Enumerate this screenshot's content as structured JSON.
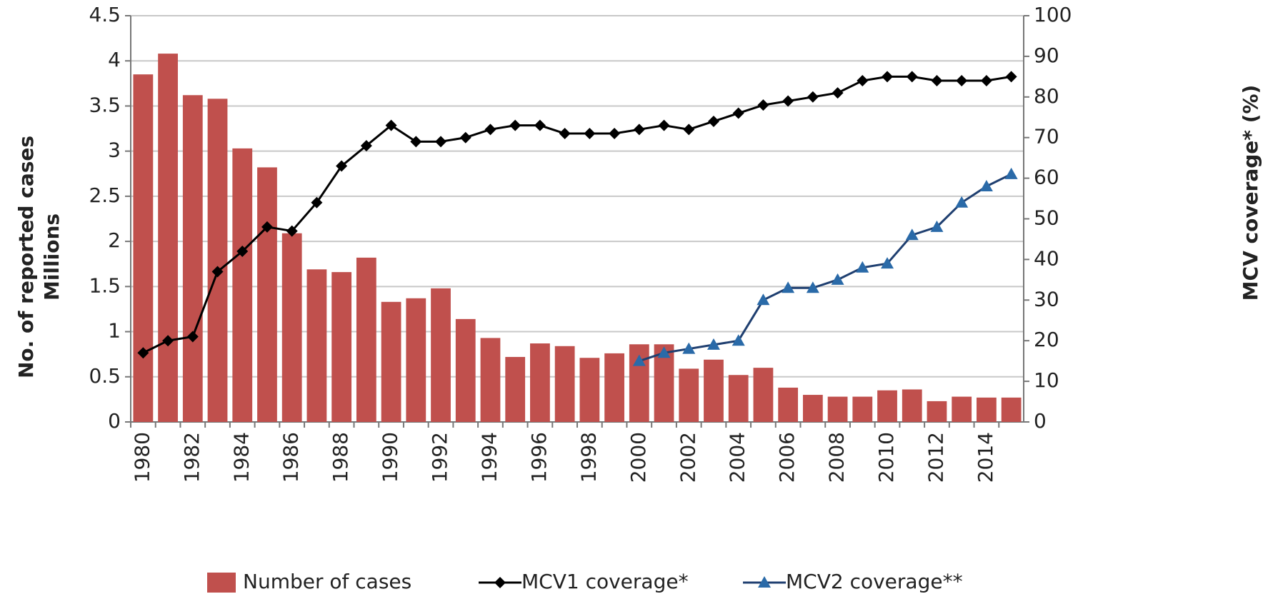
{
  "chart_data": {
    "type": "bar",
    "y_label": [
      "No. of reported cases",
      "Millions"
    ],
    "y2_label": "MCV coverage* (%)",
    "categories": [
      "1980",
      null,
      "1982",
      null,
      "1984",
      null,
      "1986",
      null,
      "1988",
      null,
      "1990",
      null,
      "1992",
      null,
      "1994",
      null,
      "1996",
      null,
      "1998",
      null,
      "2000",
      null,
      "2002",
      null,
      "2004",
      null,
      "2006",
      null,
      "2008",
      null,
      "2010",
      null,
      "2012",
      null,
      "2014",
      null
    ],
    "series": [
      {
        "name": "Number of cases",
        "type": "bar",
        "color": "#c0504d",
        "values": [
          3.85,
          4.08,
          3.62,
          3.58,
          3.03,
          2.82,
          2.09,
          1.69,
          1.66,
          1.82,
          1.33,
          1.37,
          1.48,
          1.14,
          0.93,
          0.72,
          0.87,
          0.84,
          0.71,
          0.76,
          0.86,
          0.86,
          0.59,
          0.69,
          0.52,
          0.6,
          0.38,
          0.3,
          0.28,
          0.28,
          0.35,
          0.36,
          0.23,
          0.28,
          0.27,
          0.27
        ]
      },
      {
        "name": "MCV1 coverage*",
        "type": "line",
        "marker": "diamond",
        "color": "#000000",
        "axis": "y2",
        "values": [
          17,
          20,
          21,
          37,
          42,
          48,
          47,
          54,
          63,
          68,
          73,
          69,
          69,
          70,
          72,
          73,
          73,
          71,
          71,
          71,
          72,
          73,
          72,
          74,
          76,
          78,
          79,
          80,
          81,
          84,
          85,
          85,
          84,
          84,
          84,
          85
        ]
      },
      {
        "name": "MCV2 coverage**",
        "type": "line",
        "marker": "triangle",
        "color": "#2a6aa8",
        "axis": "y2",
        "values": [
          null,
          null,
          null,
          null,
          null,
          null,
          null,
          null,
          null,
          null,
          null,
          null,
          null,
          null,
          null,
          null,
          null,
          null,
          null,
          null,
          15,
          17,
          18,
          19,
          20,
          30,
          33,
          33,
          35,
          38,
          39,
          46,
          48,
          54,
          58,
          61
        ]
      }
    ],
    "ylim": [
      0,
      4.5
    ],
    "yticks": [
      0,
      0.5,
      1,
      1.5,
      2,
      2.5,
      3,
      3.5,
      4,
      4.5
    ],
    "y2lim": [
      0,
      100
    ],
    "y2ticks": [
      0,
      10,
      20,
      30,
      40,
      50,
      60,
      70,
      80,
      90,
      100
    ],
    "grid": true
  }
}
